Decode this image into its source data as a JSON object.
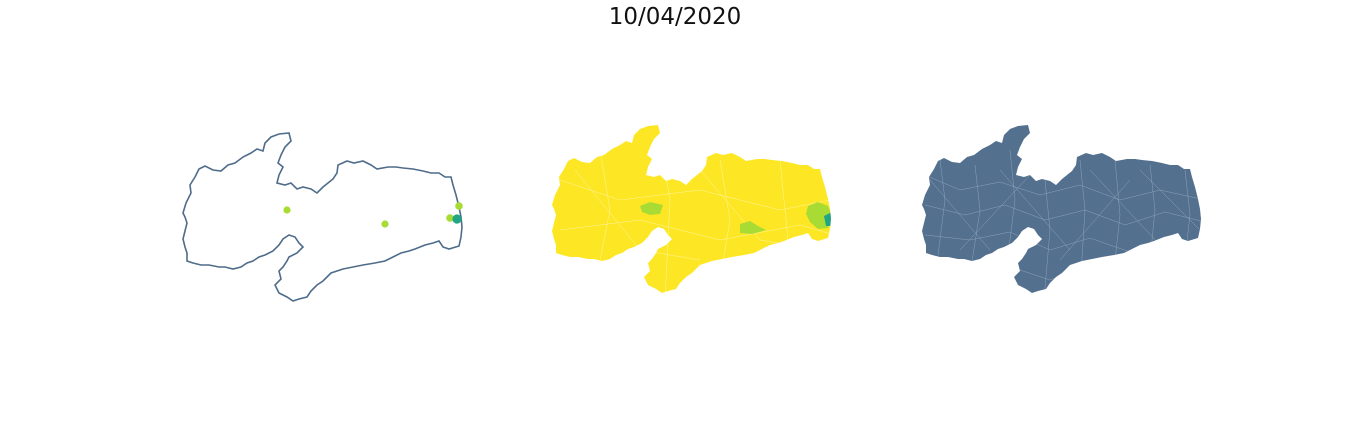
{
  "figure": {
    "title": "10/04/2020"
  },
  "colors": {
    "outline": "#4f6c8a",
    "choropleth_base": "#fde725",
    "choropleth_mid": "#a8db34",
    "choropleth_high": "#21a585",
    "municipality_fill": "#53708e",
    "municipality_border": "#a9bccf",
    "point_low": "#a8db34",
    "point_high": "#21a585"
  },
  "panels": [
    {
      "name": "point-map",
      "style": "outline with case points"
    },
    {
      "name": "choropleth-map",
      "style": "viridis colored municipalities"
    },
    {
      "name": "municipality-map",
      "style": "uniform municipalities"
    }
  ]
}
